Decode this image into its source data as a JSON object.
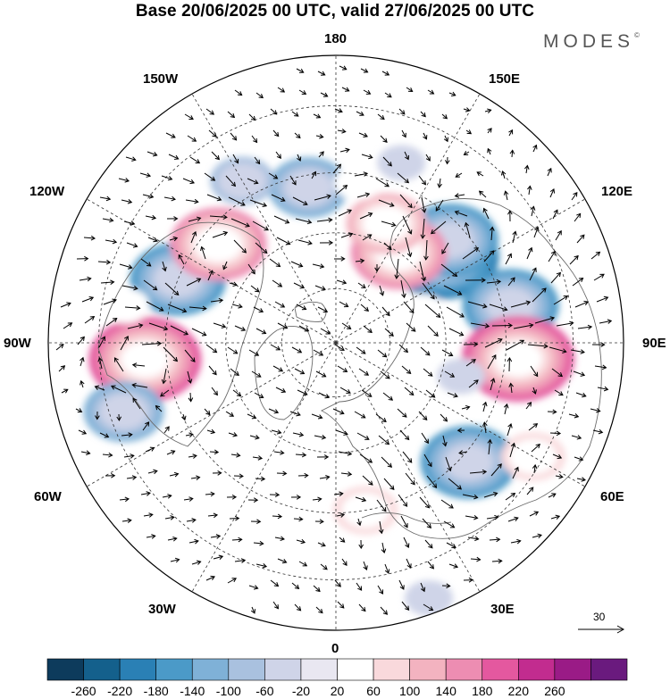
{
  "title": "Base 20/06/2025 00 UTC, valid 27/06/2025 00 UTC",
  "brand": "MODES",
  "brand_mark": "©",
  "longitude_labels": {
    "north": "180",
    "south": "0",
    "east": "90E",
    "west": "90W",
    "ne_150": "150E",
    "ne_120": "120E",
    "se_60": "60E",
    "se_30": "30E",
    "nw_150": "150W",
    "nw_120": "120W",
    "sw_60": "60W",
    "sw_30": "30W"
  },
  "reference_vector": "30",
  "colorbar": {
    "ticks": [
      "-260",
      "-220",
      "-180",
      "-140",
      "-100",
      "-60",
      "-20",
      "20",
      "60",
      "100",
      "140",
      "180",
      "220",
      "260"
    ],
    "colors": [
      "#0d3b5c",
      "#14608c",
      "#2a80b5",
      "#4b9ac8",
      "#7fb1d7",
      "#a9c1df",
      "#cfd4e8",
      "#e9e7f1",
      "#ffffff",
      "#f9d9dc",
      "#f3b3c0",
      "#ed8db2",
      "#e4589f",
      "#c22c8f",
      "#9a1b86",
      "#6a1a7e"
    ]
  },
  "anomaly_blobs": [
    {
      "lon": 129,
      "lat": 53,
      "value": -200
    },
    {
      "lon": 132,
      "lat": 49,
      "value": -140
    },
    {
      "lon": 102,
      "lat": 43,
      "value": -140
    },
    {
      "lon": 85,
      "lat": 42,
      "value": 180
    },
    {
      "lon": 145,
      "lat": 60,
      "value": 140
    },
    {
      "lon": 157,
      "lat": 55,
      "value": 100
    },
    {
      "lon": 48,
      "lat": 43,
      "value": -140
    },
    {
      "lon": 60,
      "lat": 32,
      "value": 60
    },
    {
      "lon": -85,
      "lat": 40,
      "value": 200
    },
    {
      "lon": -112,
      "lat": 45,
      "value": -140
    },
    {
      "lon": -130,
      "lat": 49,
      "value": 140
    },
    {
      "lon": -170,
      "lat": 48,
      "value": -100
    },
    {
      "lon": -150,
      "lat": 41,
      "value": -60
    },
    {
      "lon": -72,
      "lat": 33,
      "value": -100
    },
    {
      "lon": 10,
      "lat": 45,
      "value": 60
    },
    {
      "lon": 5,
      "lat": 56,
      "value": 40
    },
    {
      "lon": -20,
      "lat": 25,
      "value": 40
    },
    {
      "lon": 20,
      "lat": 23,
      "value": -40
    },
    {
      "lon": -100,
      "lat": 35,
      "value": 40
    },
    {
      "lon": 172,
      "lat": 47,
      "value": 40
    },
    {
      "lon": 160,
      "lat": 40,
      "value": -40
    },
    {
      "lon": 110,
      "lat": 65,
      "value": 40
    },
    {
      "lon": 75,
      "lat": 55,
      "value": -40
    }
  ]
}
